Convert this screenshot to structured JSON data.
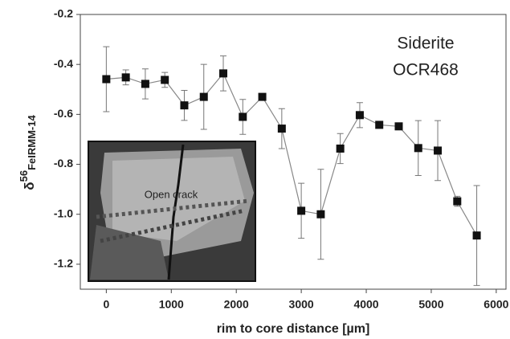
{
  "chart_data": {
    "type": "line",
    "x_label": "rim to core distance [µm]",
    "y_label": {
      "symbol": "δ",
      "superscript": "56",
      "subscript": "FeIRMM-14"
    },
    "annotations": [
      "Siderite",
      "OCR468"
    ],
    "inset_label": "Open crack",
    "x": [
      0,
      300,
      600,
      900,
      1200,
      1500,
      1800,
      2100,
      2400,
      2700,
      3000,
      3300,
      3600,
      3900,
      4200,
      4500,
      4800,
      5100,
      5400,
      5700
    ],
    "series": [
      {
        "color": "#111111",
        "line_color": "#888888",
        "values": [
          -0.459,
          -0.452,
          -0.478,
          -0.462,
          -0.564,
          -0.53,
          -0.436,
          -0.61,
          -0.53,
          -0.657,
          -0.986,
          -1.0,
          -0.737,
          -0.603,
          -0.642,
          -0.648,
          -0.735,
          -0.745,
          -0.948,
          -1.085
        ],
        "errors": [
          0.13,
          0.03,
          0.06,
          0.03,
          0.06,
          0.13,
          0.07,
          0.07,
          0,
          0.08,
          0.11,
          0.18,
          0.06,
          0.05,
          0,
          0,
          0.11,
          0.12,
          0.02,
          0.2
        ]
      }
    ],
    "xlim": [
      -400,
      6150
    ],
    "xticks": [
      0,
      1000,
      2000,
      3000,
      4000,
      5000,
      6000
    ],
    "ylim": [
      -1.3,
      -0.2
    ],
    "yticks": [
      -0.2,
      -0.4,
      -0.6,
      -0.8,
      {
        "value": -1,
        "label": "-1.0"
      },
      -1.2
    ]
  }
}
